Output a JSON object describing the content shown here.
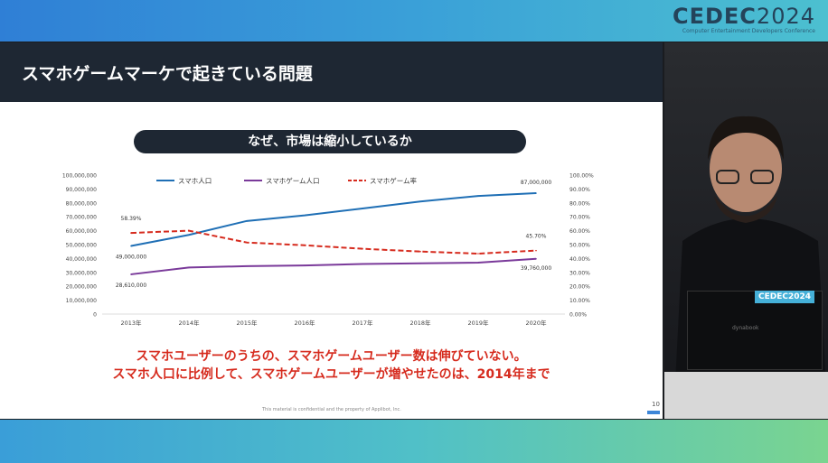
{
  "event_logo": {
    "name": "CEDEC",
    "year": "2024",
    "tagline": "Computer Entertainment Developers Conference"
  },
  "slide": {
    "title": "スマホゲームマーケで起きている問題",
    "subtitle": "なぜ、市場は縮小しているか",
    "message_lines": [
      "スマホユーザーのうちの、スマホゲームユーザー数は伸びていない。",
      "スマホ人口に比例して、スマホゲームユーザーが増やせたのは、2014年まで"
    ],
    "footer": "This material is confidential and the property of Applibot, Inc.",
    "page_number": "10"
  },
  "laptop": {
    "badge": "CEDEC2024",
    "brand": "dynabook"
  },
  "chart_data": {
    "type": "line",
    "categories": [
      "2013年",
      "2014年",
      "2015年",
      "2016年",
      "2017年",
      "2018年",
      "2019年",
      "2020年"
    ],
    "y_left": {
      "range": [
        0,
        100000000
      ],
      "ticks": [
        "0",
        "10,000,000",
        "20,000,000",
        "30,000,000",
        "40,000,000",
        "50,000,000",
        "60,000,000",
        "70,000,000",
        "80,000,000",
        "90,000,000",
        "100,000,000"
      ]
    },
    "y_right": {
      "range": [
        0,
        100
      ],
      "ticks": [
        "0.00%",
        "10.00%",
        "20.00%",
        "30.00%",
        "40.00%",
        "50.00%",
        "60.00%",
        "70.00%",
        "80.00%",
        "90.00%",
        "100.00%"
      ]
    },
    "legend_position": "top",
    "series": [
      {
        "name": "スマホ人口",
        "axis": "left",
        "color": "#1f6fb5",
        "dash": false,
        "values": [
          49000000,
          57000000,
          67000000,
          71000000,
          76000000,
          81000000,
          85000000,
          87000000
        ],
        "labels": {
          "0": "49,000,000",
          "7": "87,000,000"
        }
      },
      {
        "name": "スマホゲーム人口",
        "axis": "left",
        "color": "#7a3a9a",
        "dash": false,
        "values": [
          28610000,
          33500000,
          34500000,
          35000000,
          36000000,
          36500000,
          37000000,
          39760000
        ],
        "labels": {
          "0": "28,610,000",
          "7": "39,760,000"
        }
      },
      {
        "name": "スマホゲーム率",
        "axis": "right",
        "color": "#d62b1e",
        "dash": true,
        "values": [
          58.39,
          60,
          51.5,
          49.5,
          47,
          45,
          43.5,
          45.7
        ],
        "labels": {
          "0": "58.39%",
          "7": "45.70%"
        }
      }
    ]
  }
}
